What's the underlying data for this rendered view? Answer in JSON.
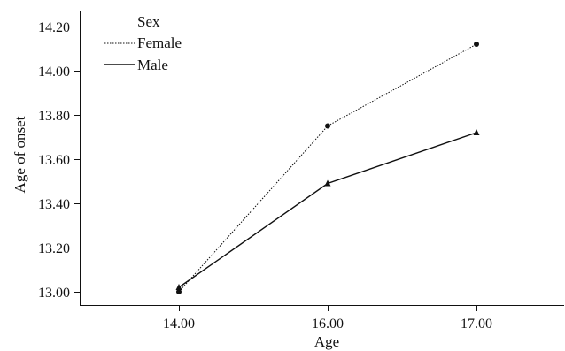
{
  "chart_data": {
    "type": "line",
    "x": [
      14.0,
      16.0,
      17.0
    ],
    "x_tick_labels": [
      "14.00",
      "16.00",
      "17.00"
    ],
    "y_tick_values": [
      13.0,
      13.2,
      13.4,
      13.6,
      13.8,
      14.0,
      14.2
    ],
    "y_tick_labels": [
      "13.00",
      "13.20",
      "13.40",
      "13.60",
      "13.80",
      "14.00",
      "14.20"
    ],
    "xlabel": "Age",
    "ylabel": "Age of onset",
    "ylim": [
      12.95,
      14.27
    ],
    "grid": false,
    "legend": {
      "title": "Sex",
      "placement": "top-left"
    },
    "series": [
      {
        "name": "Female",
        "values": [
          13.0,
          13.75,
          14.12
        ],
        "line_style": "dotted",
        "marker": "circle",
        "color": "#111111"
      },
      {
        "name": "Male",
        "values": [
          13.02,
          13.49,
          13.72
        ],
        "line_style": "solid",
        "marker": "triangle",
        "color": "#111111"
      }
    ]
  }
}
